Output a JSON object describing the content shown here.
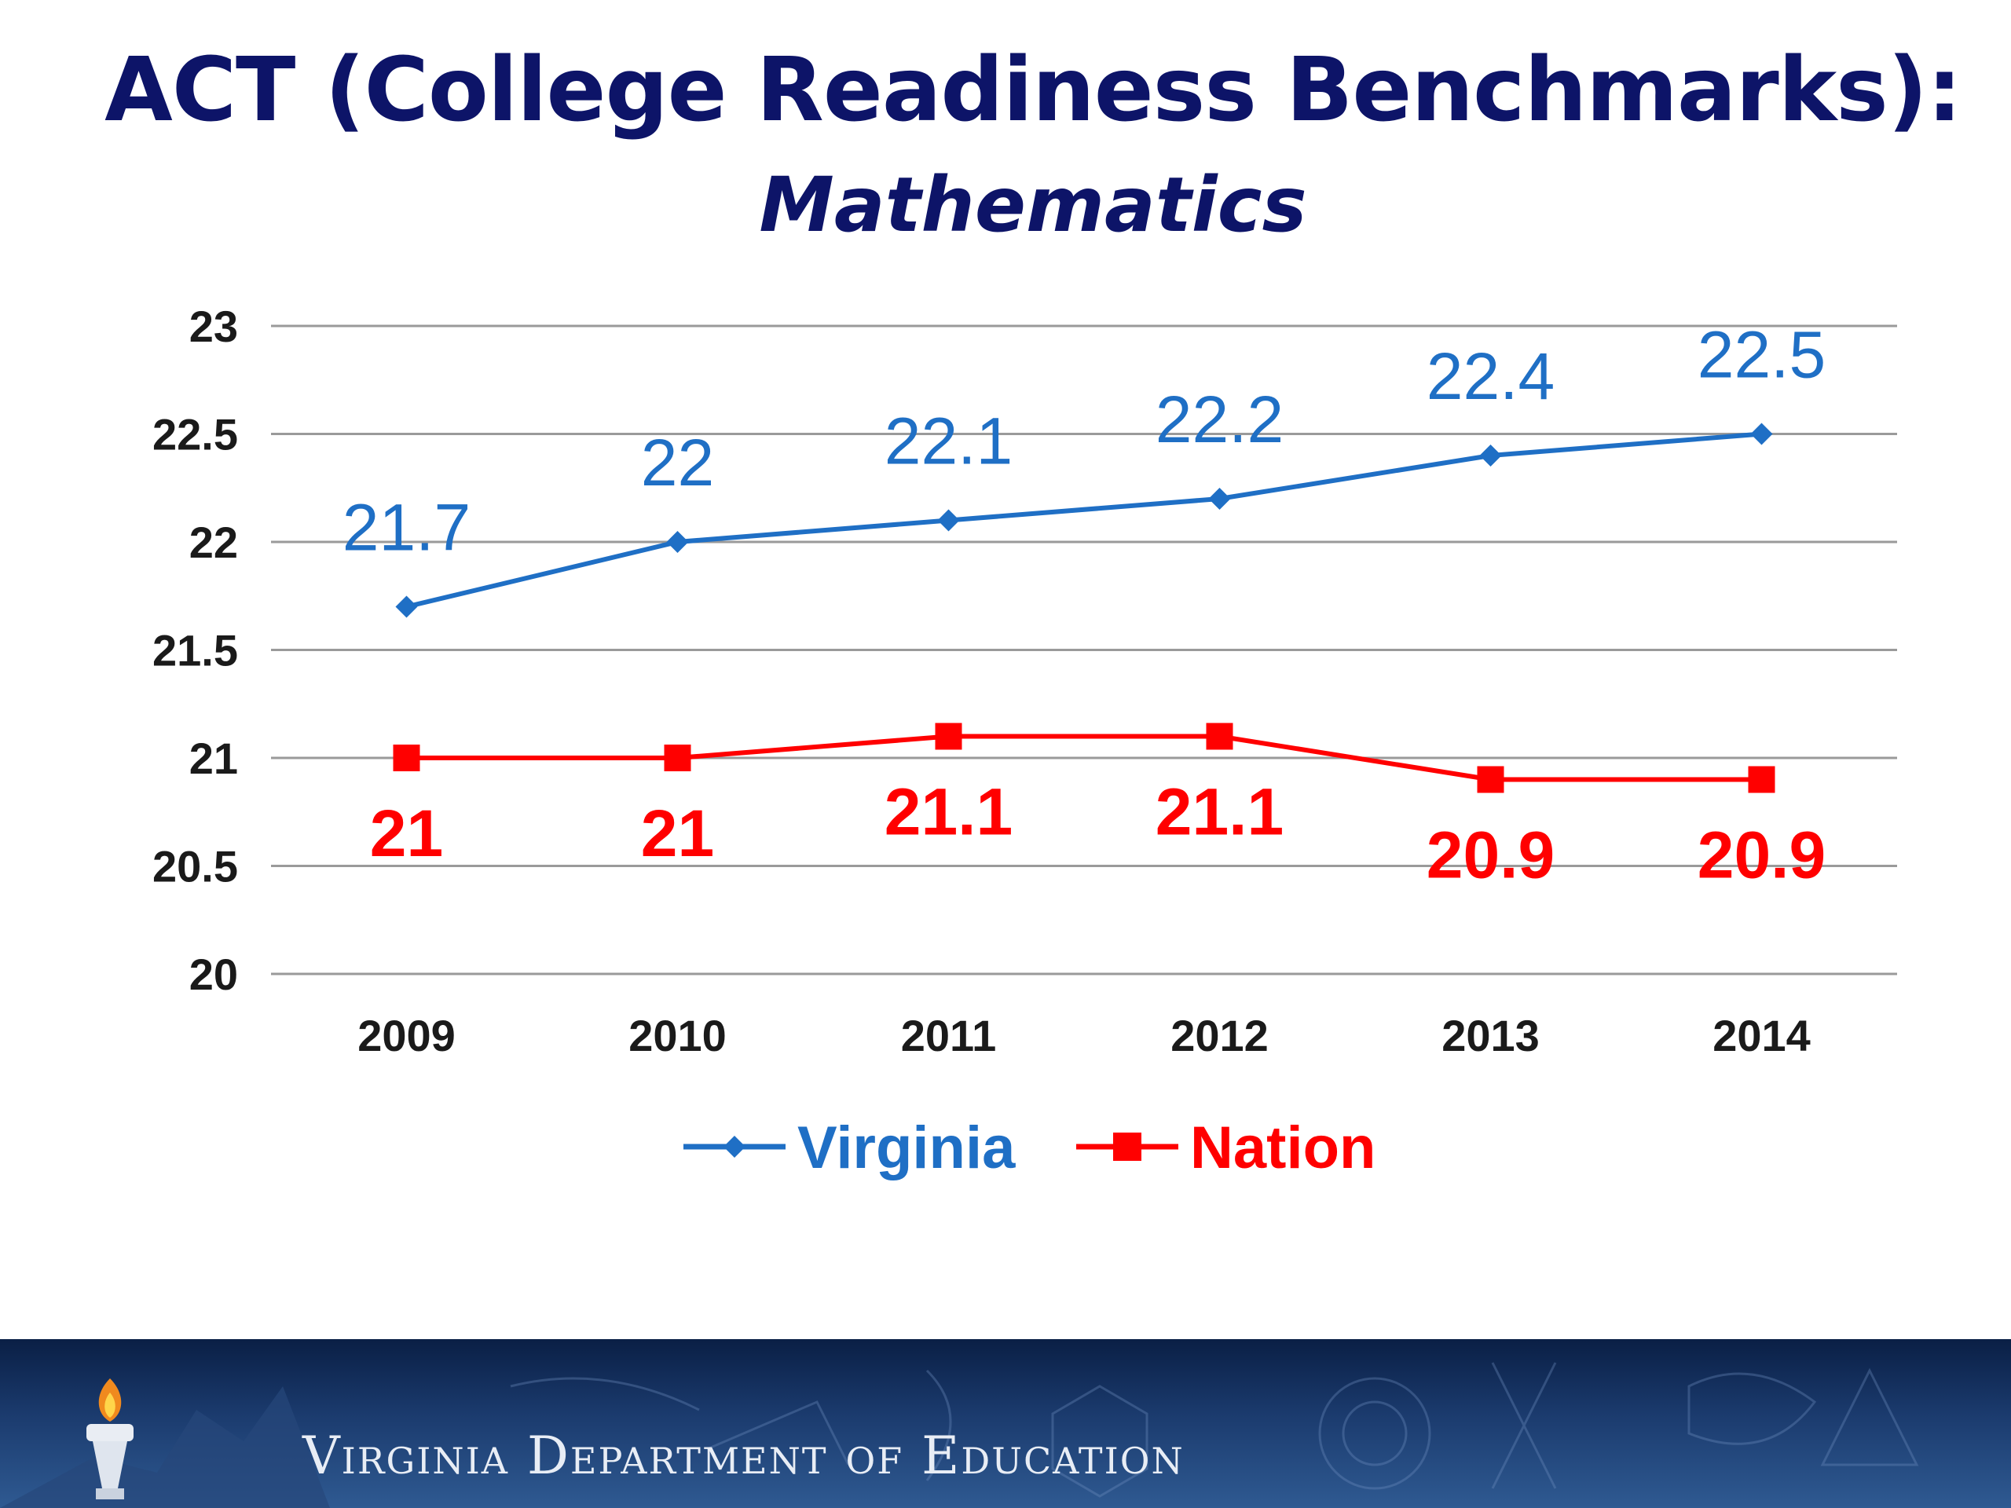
{
  "slide": {
    "title": "ACT (College Readiness Benchmarks):",
    "subtitle": "Mathematics"
  },
  "footer": {
    "organization": "Virginia Department of Education"
  },
  "colors": {
    "title": "#0d1468",
    "virginia": "#1f6fc5",
    "nation": "#ff0000",
    "axis_text": "#1a1a1a",
    "gridline": "#9a9a9a"
  },
  "chart_data": {
    "type": "line",
    "categories": [
      "2009",
      "2010",
      "2011",
      "2012",
      "2013",
      "2014"
    ],
    "series": [
      {
        "name": "Virginia",
        "values": [
          21.7,
          22,
          22.1,
          22.2,
          22.4,
          22.5
        ],
        "labels": [
          "21.7",
          "22",
          "22.1",
          "22.2",
          "22.4",
          "22.5"
        ],
        "marker": "diamond"
      },
      {
        "name": "Nation",
        "values": [
          21,
          21,
          21.1,
          21.1,
          20.9,
          20.9
        ],
        "labels": [
          "21",
          "21",
          "21.1",
          "21.1",
          "20.9",
          "20.9"
        ],
        "marker": "square"
      }
    ],
    "yticks": [
      "20",
      "20.5",
      "21",
      "21.5",
      "22",
      "22.5",
      "23"
    ],
    "ylim": [
      20,
      23
    ],
    "grid": true,
    "legend_position": "bottom"
  }
}
